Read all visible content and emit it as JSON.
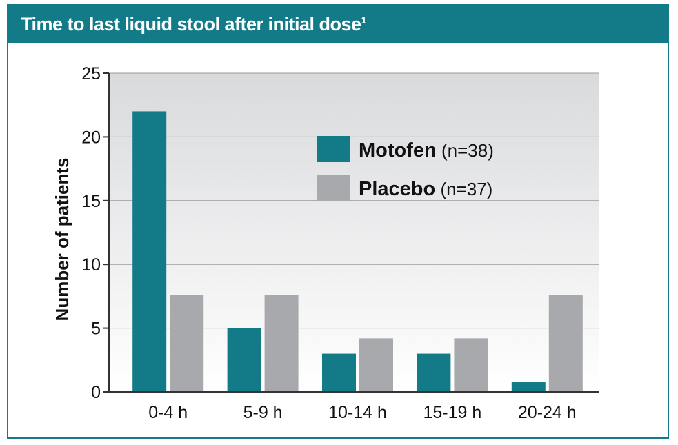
{
  "header": {
    "title": "Time to last liquid stool after initial dose",
    "footnote": "1"
  },
  "colors": {
    "frame": "#127b87",
    "motofen": "#127b87",
    "placebo": "#a8a9ac",
    "plot_bg_top": "#d9dadc",
    "plot_bg_bottom": "#ffffff"
  },
  "chart_data": {
    "type": "bar",
    "title": "Time to last liquid stool after initial dose",
    "xlabel": "",
    "ylabel": "Number of patients",
    "categories": [
      "0-4 h",
      "5-9 h",
      "10-14 h",
      "15-19 h",
      "20-24 h"
    ],
    "ylim": [
      0,
      25
    ],
    "yticks": [
      0,
      5,
      10,
      15,
      20,
      25
    ],
    "grid": true,
    "legend_position": "top-right",
    "series": [
      {
        "name": "Motofen",
        "n_label": "(n=38)",
        "values": [
          22,
          5,
          3,
          3,
          0.8
        ],
        "color": "#127b87"
      },
      {
        "name": "Placebo",
        "n_label": "(n=37)",
        "values": [
          7.6,
          7.6,
          4.2,
          4.2,
          7.6
        ],
        "color": "#a8a9ac"
      }
    ]
  }
}
